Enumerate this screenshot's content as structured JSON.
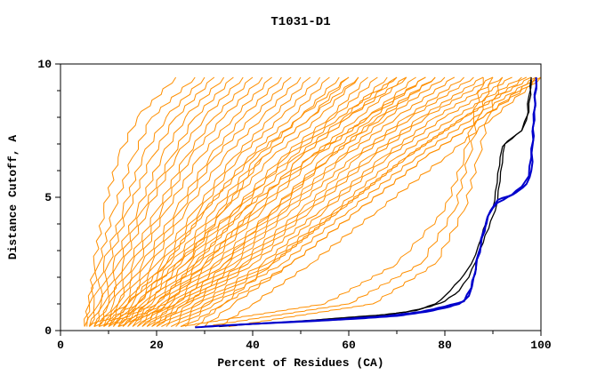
{
  "title": "T1031-D1",
  "colors": {
    "orange": "#ff8f00",
    "blue": "#0000cc",
    "black": "#000000",
    "frame": "#000000",
    "background": "#ffffff"
  },
  "chart_data": {
    "type": "line",
    "title": "T1031-D1",
    "xlabel": "Percent of Residues (CA)",
    "ylabel": "Distance Cutoff, A",
    "xlim": [
      0,
      100
    ],
    "ylim": [
      0,
      10
    ],
    "x_major_ticks": [
      0,
      20,
      40,
      60,
      80,
      100
    ],
    "x_minor_ticks": [
      10,
      30,
      50,
      70,
      90
    ],
    "y_major_ticks": [
      0,
      5,
      10
    ],
    "y_minor_ticks": [
      1,
      2,
      3,
      4,
      6,
      7,
      8,
      9
    ],
    "grid": false,
    "legend": "none",
    "orange_y_samples": [
      0.15,
      1,
      2.5,
      4.5,
      6.5,
      8,
      9.5
    ],
    "orange_series_x": [
      [
        5,
        6,
        8,
        11,
        15,
        19,
        28
      ],
      [
        5.5,
        7,
        9,
        13,
        17,
        22,
        30
      ],
      [
        6,
        8,
        10,
        14,
        19,
        24,
        32
      ],
      [
        6,
        8.5,
        11,
        16,
        21,
        26,
        34
      ],
      [
        7,
        9,
        12,
        17,
        23,
        28,
        36
      ],
      [
        7,
        10,
        13,
        18,
        24,
        30,
        38
      ],
      [
        8,
        10,
        14,
        20,
        26,
        32,
        40
      ],
      [
        8,
        11,
        15,
        21,
        27,
        34,
        42
      ],
      [
        9,
        12,
        16,
        22,
        29,
        36,
        44
      ],
      [
        9,
        12,
        17,
        24,
        31,
        38,
        46
      ],
      [
        10,
        13,
        18,
        25,
        32,
        40,
        48
      ],
      [
        10,
        14,
        19,
        26,
        34,
        42,
        50
      ],
      [
        11,
        14,
        20,
        28,
        36,
        44,
        52
      ],
      [
        11,
        15,
        21,
        29,
        37,
        46,
        54
      ],
      [
        12,
        16,
        22,
        30,
        39,
        48,
        56
      ],
      [
        12,
        16,
        23,
        32,
        41,
        50,
        58
      ],
      [
        13,
        17,
        24,
        33,
        42,
        52,
        60
      ],
      [
        13,
        18,
        25,
        34,
        44,
        54,
        62
      ],
      [
        14,
        18,
        26,
        36,
        46,
        56,
        64
      ],
      [
        14,
        19,
        27,
        37,
        47,
        57,
        66
      ],
      [
        15,
        20,
        28,
        38,
        49,
        59,
        68
      ],
      [
        15,
        20,
        29,
        40,
        50,
        60,
        70
      ],
      [
        16,
        21,
        30,
        41,
        52,
        62,
        72
      ],
      [
        16,
        22,
        31,
        42,
        53,
        64,
        74
      ],
      [
        17,
        22,
        32,
        44,
        55,
        65,
        76
      ],
      [
        17,
        23,
        33,
        45,
        56,
        67,
        78
      ],
      [
        18,
        24,
        34,
        46,
        58,
        68,
        80
      ],
      [
        18,
        24,
        35,
        47,
        59,
        70,
        82
      ],
      [
        19,
        25,
        36,
        48,
        61,
        72,
        84
      ],
      [
        19,
        26,
        37,
        50,
        62,
        73,
        86
      ],
      [
        20,
        26,
        38,
        51,
        64,
        75,
        88
      ],
      [
        20,
        27,
        39,
        52,
        65,
        76,
        90
      ],
      [
        21,
        28,
        40,
        54,
        67,
        78,
        92
      ],
      [
        22,
        29,
        42,
        55,
        68,
        80,
        94
      ],
      [
        23,
        30,
        43,
        57,
        70,
        82,
        96
      ],
      [
        24,
        31,
        44,
        58,
        72,
        84,
        98
      ],
      [
        25,
        32,
        46,
        60,
        74,
        86,
        99
      ],
      [
        26,
        34,
        48,
        62,
        76,
        88,
        100
      ],
      [
        8,
        18,
        26,
        34,
        42,
        52,
        62
      ],
      [
        10,
        22,
        30,
        40,
        50,
        60,
        72
      ],
      [
        12,
        24,
        34,
        44,
        56,
        66,
        78
      ],
      [
        6,
        14,
        22,
        30,
        40,
        50,
        60
      ],
      [
        7,
        16,
        24,
        36,
        48,
        58,
        70
      ],
      [
        9,
        20,
        28,
        38,
        52,
        64,
        76
      ],
      [
        28,
        34,
        44,
        58,
        72,
        84,
        97
      ],
      [
        30,
        36,
        48,
        62,
        76,
        88,
        99
      ],
      [
        33,
        40,
        52,
        66,
        80,
        90,
        100
      ],
      [
        5,
        6,
        7,
        9,
        12,
        16,
        24
      ],
      [
        30,
        60,
        75,
        82,
        85,
        87,
        90
      ],
      [
        25,
        55,
        70,
        80,
        84,
        86,
        88
      ],
      [
        35,
        65,
        78,
        84,
        87,
        89,
        92
      ]
    ],
    "highlight_series": [
      {
        "name": "model-black-1",
        "color": "black",
        "width": 1.3,
        "points": [
          [
            33,
            0.15
          ],
          [
            40,
            0.25
          ],
          [
            50,
            0.35
          ],
          [
            60,
            0.5
          ],
          [
            68,
            0.6
          ],
          [
            74,
            0.75
          ],
          [
            78,
            1.0
          ],
          [
            80,
            1.3
          ],
          [
            82,
            1.7
          ],
          [
            84,
            2.1
          ],
          [
            85.5,
            2.5
          ],
          [
            87,
            3.2
          ],
          [
            88,
            3.8
          ],
          [
            89,
            4.3
          ],
          [
            90,
            4.6
          ],
          [
            90.5,
            5.2
          ],
          [
            91,
            5.9
          ],
          [
            91.5,
            6.5
          ],
          [
            92,
            6.9
          ],
          [
            93,
            7.1
          ],
          [
            94.5,
            7.3
          ],
          [
            96,
            7.5
          ],
          [
            97,
            7.9
          ],
          [
            97.5,
            8.8
          ],
          [
            98,
            9.4
          ]
        ]
      },
      {
        "name": "model-black-2",
        "color": "black",
        "width": 1.3,
        "points": [
          [
            36,
            0.2
          ],
          [
            45,
            0.3
          ],
          [
            55,
            0.42
          ],
          [
            65,
            0.55
          ],
          [
            72,
            0.7
          ],
          [
            77,
            0.9
          ],
          [
            80,
            1.1
          ],
          [
            83,
            1.5
          ],
          [
            85,
            2.0
          ],
          [
            86.5,
            2.6
          ],
          [
            88,
            3.3
          ],
          [
            89.5,
            4.1
          ],
          [
            90.5,
            4.5
          ],
          [
            91,
            4.9
          ],
          [
            91.5,
            5.6
          ],
          [
            92,
            6.3
          ],
          [
            92.5,
            7.0
          ],
          [
            94,
            7.2
          ],
          [
            96,
            7.5
          ],
          [
            97.5,
            8.2
          ],
          [
            98,
            9.5
          ]
        ]
      },
      {
        "name": "model-blue-1",
        "color": "blue",
        "width": 2,
        "points": [
          [
            28,
            0.12
          ],
          [
            40,
            0.25
          ],
          [
            52,
            0.35
          ],
          [
            62,
            0.45
          ],
          [
            70,
            0.55
          ],
          [
            76,
            0.7
          ],
          [
            80,
            0.85
          ],
          [
            83,
            1.0
          ],
          [
            85,
            1.3
          ],
          [
            86,
            2.0
          ],
          [
            87,
            2.9
          ],
          [
            88,
            3.7
          ],
          [
            89,
            4.3
          ],
          [
            90,
            4.6
          ],
          [
            91,
            4.8
          ],
          [
            93,
            5.0
          ],
          [
            95,
            5.2
          ],
          [
            97,
            5.5
          ],
          [
            98,
            6.0
          ],
          [
            98.3,
            7.0
          ],
          [
            98.6,
            8.2
          ],
          [
            99,
            9.5
          ]
        ]
      },
      {
        "name": "model-blue-2",
        "color": "blue",
        "width": 2,
        "points": [
          [
            30,
            0.15
          ],
          [
            45,
            0.3
          ],
          [
            58,
            0.42
          ],
          [
            68,
            0.55
          ],
          [
            75,
            0.7
          ],
          [
            80,
            0.9
          ],
          [
            84,
            1.1
          ],
          [
            85.5,
            1.6
          ],
          [
            86.5,
            2.4
          ],
          [
            87.5,
            3.2
          ],
          [
            88.5,
            4.0
          ],
          [
            89.5,
            4.5
          ],
          [
            91,
            4.9
          ],
          [
            94,
            5.1
          ],
          [
            96,
            5.4
          ],
          [
            97.5,
            5.8
          ],
          [
            98,
            6.5
          ],
          [
            98.5,
            7.8
          ],
          [
            99,
            9.4
          ]
        ]
      }
    ]
  }
}
